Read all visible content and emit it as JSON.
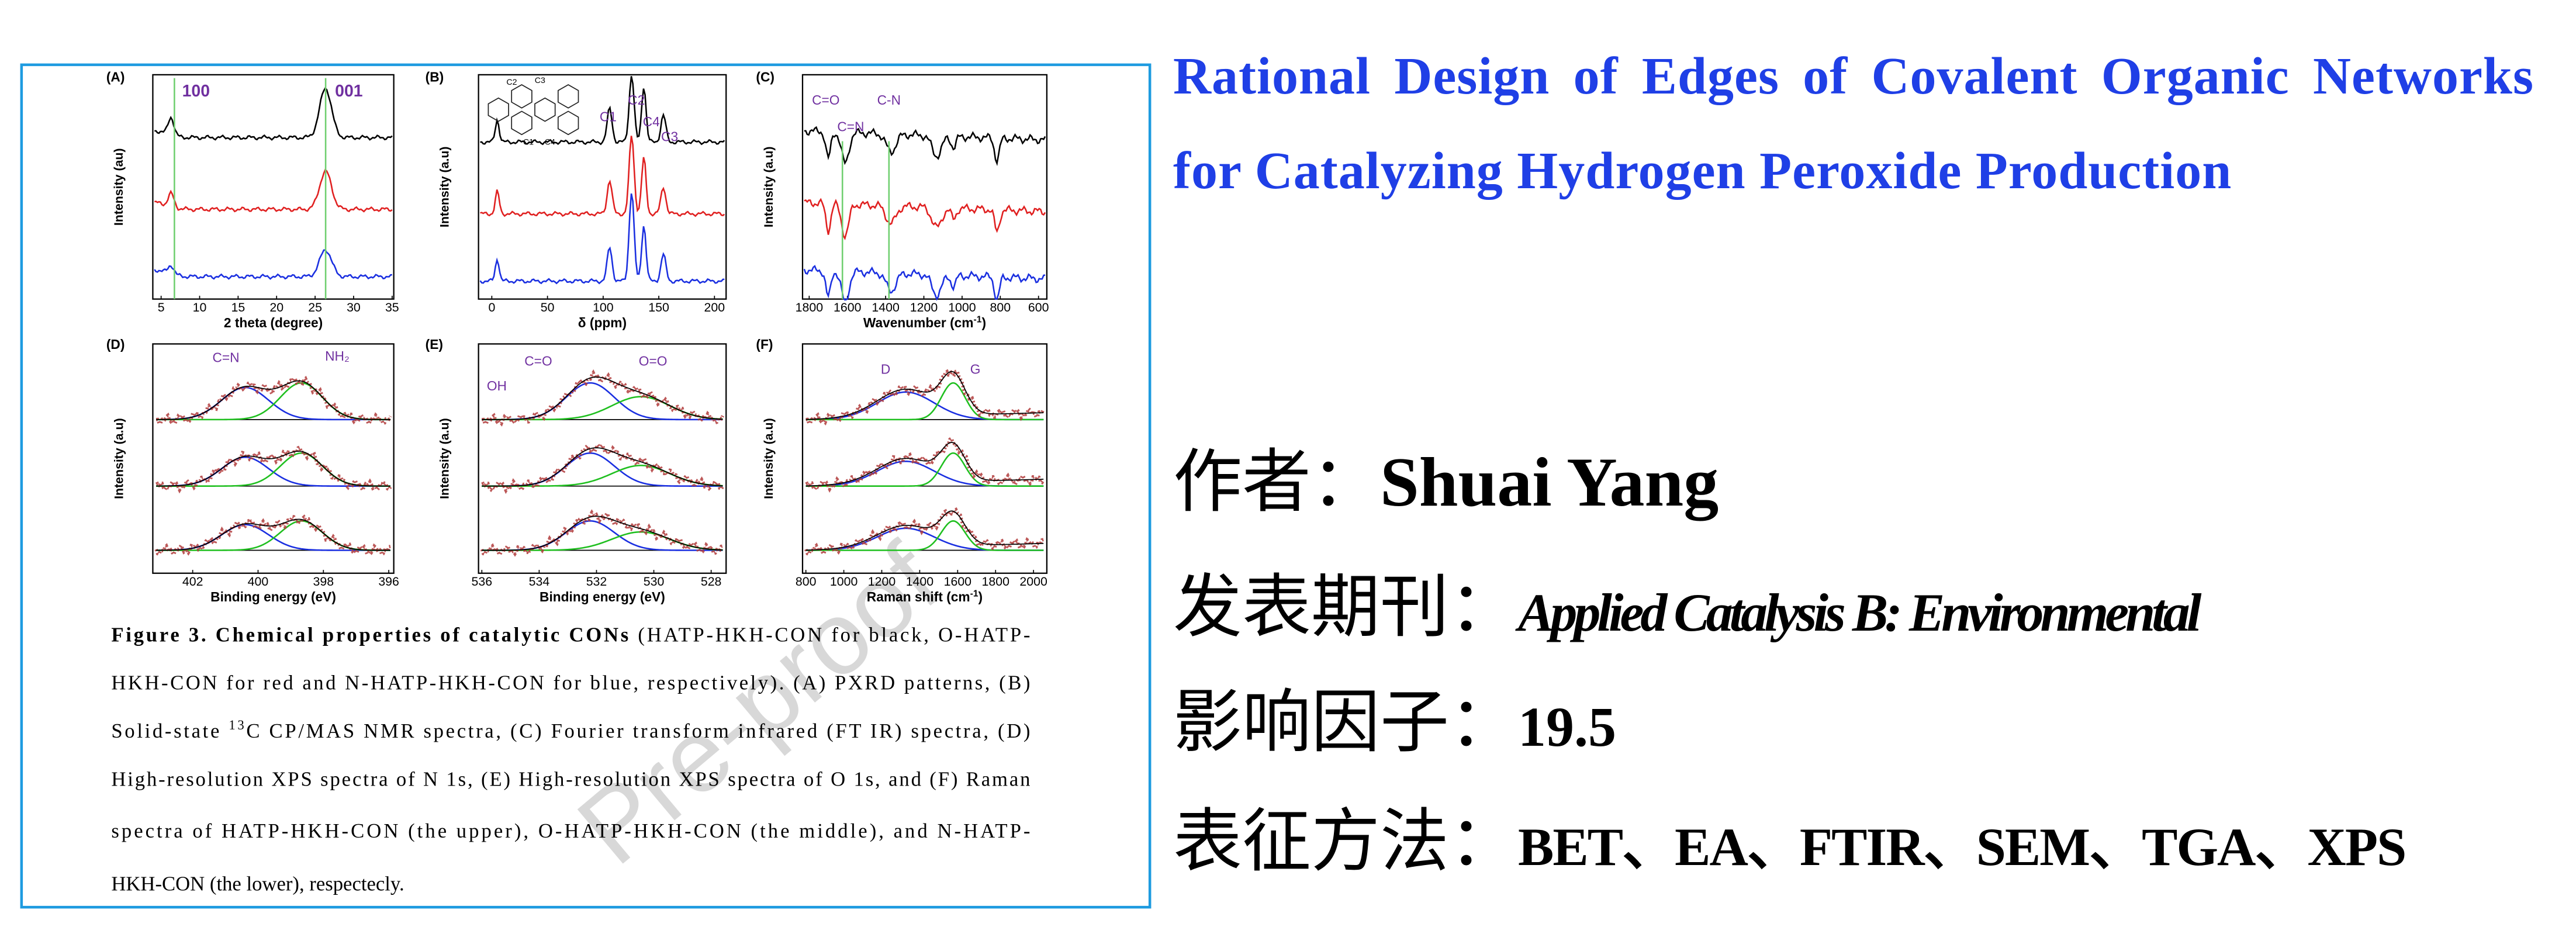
{
  "title": "Rational Design of Edges of Covalent Organic Networks for Catalyzing Hydrogen Peroxide Production",
  "info": {
    "author_label": "作者：",
    "author": "Shuai Yang",
    "journal_label": "发表期刊：",
    "journal": "Applied Catalysis B: Environmental",
    "impact_label": "影响因子：",
    "impact": "19.5",
    "methods_label": "表征方法：",
    "methods": "BET、EA、FTIR、SEM、TGA、XPS"
  },
  "figure": {
    "watermark": "Pre-proof",
    "panels": [
      {
        "label": "(A)",
        "xlabel": "2 theta (degree)",
        "ylabel": "Intensity (au)",
        "xticks": [
          "5",
          "10",
          "15",
          "20",
          "25",
          "30",
          "35"
        ],
        "annotations": [
          "100",
          "001"
        ]
      },
      {
        "label": "(B)",
        "xlabel": "δ (ppm)",
        "ylabel": "Intensity (a.u)",
        "xticks": [
          "0",
          "50",
          "100",
          "150",
          "200"
        ],
        "annotations": [
          "C1",
          "C2",
          "C4",
          "C3"
        ],
        "structure_labels": [
          "C2",
          "C3",
          "C1",
          "C4"
        ]
      },
      {
        "label": "(C)",
        "xlabel": "Wavenumber (cm",
        "xlabel_sup": "-1",
        "xlabel_end": ")",
        "ylabel": "Intensity (a.u)",
        "xticks": [
          "1800",
          "1600",
          "1400",
          "1200",
          "1000",
          "800",
          "600"
        ],
        "annotations": [
          "C=O",
          "C=N",
          "C-N"
        ]
      },
      {
        "label": "(D)",
        "xlabel": "Binding energy (eV)",
        "ylabel": "Intensity (a.u)",
        "xticks": [
          "402",
          "400",
          "398",
          "396"
        ],
        "annotations": [
          "C=N",
          "NH₂"
        ]
      },
      {
        "label": "(E)",
        "xlabel": "Binding energy (eV)",
        "ylabel": "Intensity (a.u)",
        "xticks": [
          "536",
          "534",
          "532",
          "530",
          "528"
        ],
        "annotations": [
          "OH",
          "C=O",
          "O=O"
        ]
      },
      {
        "label": "(F)",
        "xlabel": "Raman shift (cm",
        "xlabel_sup": "-1",
        "xlabel_end": ")",
        "ylabel": "Intensity (a.u)",
        "xticks": [
          "800",
          "1000",
          "1200",
          "1400",
          "1600",
          "1800",
          "2000"
        ],
        "annotations": [
          "D",
          "G"
        ]
      }
    ],
    "caption": {
      "title": "Figure 3. Chemical properties of catalytic CONs",
      "line1": " (HATP-HKH-CON for black, O-HATP-",
      "line2": "HKH-CON for red and N-HATP-HKH-CON for blue, respectively). (A) PXRD patterns, (B)",
      "line3a": "Solid-state ",
      "superscript": "13",
      "line3b": "C CP/MAS NMR spectra, (C) Fourier transform infrared (FT IR) spectra, (D)",
      "line4": "High-resolution XPS spectra of N 1s, (E) High-resolution XPS spectra of O 1s, and (F) Raman",
      "line5": "spectra of HATP-HKH-CON (the upper), O-HATP-HKH-CON (the middle), and N-HATP-",
      "line6": "HKH-CON (the lower), respectecly."
    }
  }
}
